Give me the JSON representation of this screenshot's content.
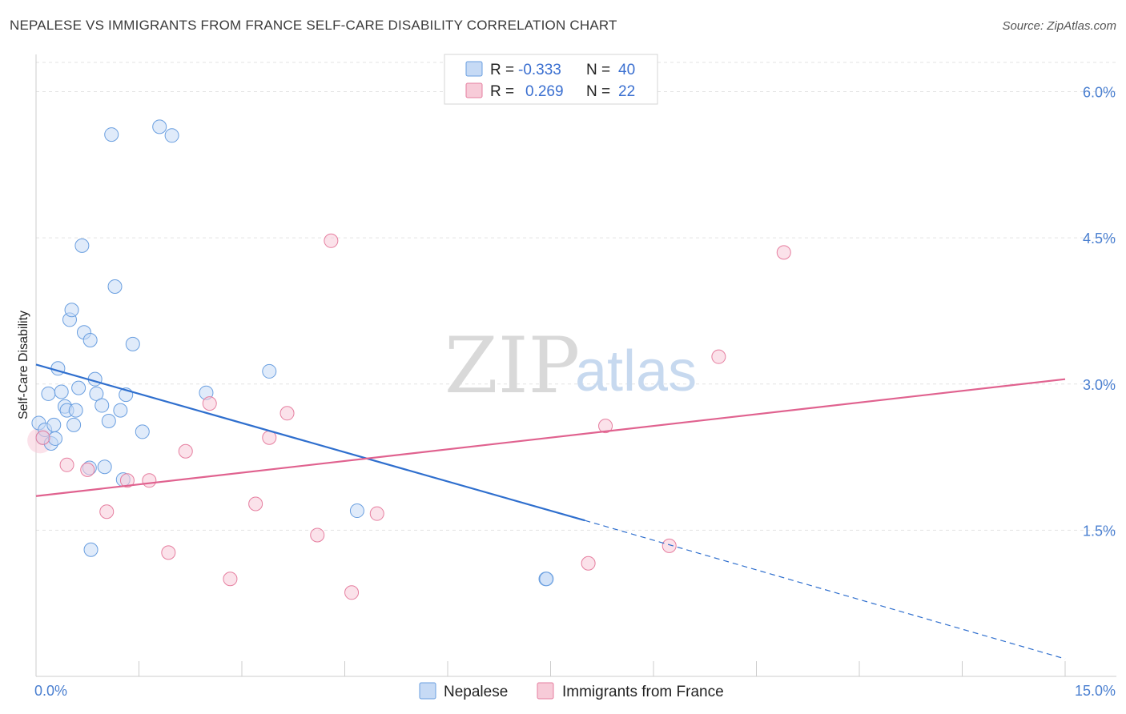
{
  "title": "NEPALESE VS IMMIGRANTS FROM FRANCE SELF-CARE DISABILITY CORRELATION CHART",
  "source": "Source: ZipAtlas.com",
  "watermark": {
    "left": "ZIP",
    "right": "atlas"
  },
  "legend_box": {
    "rows": [
      {
        "r_label": "R =",
        "r_value": "-0.333",
        "n_label": "N =",
        "n_value": "40"
      },
      {
        "r_label": "R =",
        "r_value": "0.269",
        "n_label": "N =",
        "n_value": "22"
      }
    ]
  },
  "bottom_legend": [
    "Nepalese",
    "Immigrants from France"
  ],
  "chart_data": {
    "type": "scatter",
    "ylabel": "Self-Care Disability",
    "xlim": [
      0,
      15
    ],
    "ylim": [
      0,
      6.3
    ],
    "x_ticks": [
      {
        "value": 0,
        "label": "0.0%"
      },
      {
        "value": 15,
        "label": "15.0%"
      }
    ],
    "y_ticks": [
      {
        "value": 1.5,
        "label": "1.5%"
      },
      {
        "value": 3.0,
        "label": "3.0%"
      },
      {
        "value": 4.5,
        "label": "4.5%"
      },
      {
        "value": 6.0,
        "label": "6.0%"
      }
    ],
    "grid": true,
    "series": [
      {
        "name": "Nepalese",
        "color": "#6a9fe0",
        "fill": "#c6daf5",
        "line_color": "#2f6fce",
        "trend": {
          "x0": 0,
          "y0": 3.2,
          "x1": 8.0,
          "y1": 1.6,
          "dash_x1": 15,
          "dash_y1": 0.18
        },
        "points": [
          [
            0.04,
            2.6
          ],
          [
            0.1,
            2.45
          ],
          [
            0.13,
            2.53
          ],
          [
            0.18,
            2.9
          ],
          [
            0.22,
            2.39
          ],
          [
            0.26,
            2.58
          ],
          [
            0.28,
            2.44
          ],
          [
            0.32,
            3.16
          ],
          [
            0.37,
            2.92
          ],
          [
            0.42,
            2.77
          ],
          [
            0.45,
            2.73
          ],
          [
            0.49,
            3.66
          ],
          [
            0.52,
            3.76
          ],
          [
            0.55,
            2.58
          ],
          [
            0.58,
            2.73
          ],
          [
            0.62,
            2.96
          ],
          [
            0.67,
            4.42
          ],
          [
            0.7,
            3.53
          ],
          [
            0.78,
            2.14
          ],
          [
            0.79,
            3.45
          ],
          [
            0.8,
            1.3
          ],
          [
            0.86,
            3.05
          ],
          [
            0.88,
            2.9
          ],
          [
            0.96,
            2.78
          ],
          [
            1.06,
            2.62
          ],
          [
            1.1,
            5.56
          ],
          [
            1.15,
            4.0
          ],
          [
            1.23,
            2.73
          ],
          [
            1.27,
            2.02
          ],
          [
            1.31,
            2.89
          ],
          [
            1.41,
            3.41
          ],
          [
            1.55,
            2.51
          ],
          [
            1.8,
            5.64
          ],
          [
            1.98,
            5.55
          ],
          [
            2.48,
            2.91
          ],
          [
            3.4,
            3.13
          ],
          [
            4.68,
            1.7
          ],
          [
            7.43,
            1.0
          ],
          [
            7.44,
            1.0
          ],
          [
            1.0,
            2.15
          ]
        ]
      },
      {
        "name": "Immigrants from France",
        "color": "#e67fa0",
        "fill": "#f7cbd8",
        "line_color": "#e0628f",
        "trend": {
          "x0": 0,
          "y0": 1.85,
          "x1": 15,
          "y1": 3.05
        },
        "points": [
          [
            0.1,
            2.45
          ],
          [
            0.45,
            2.17
          ],
          [
            0.75,
            2.12
          ],
          [
            1.03,
            1.69
          ],
          [
            1.33,
            2.01
          ],
          [
            1.65,
            2.01
          ],
          [
            1.93,
            1.27
          ],
          [
            2.18,
            2.31
          ],
          [
            2.53,
            2.8
          ],
          [
            2.83,
            1.0
          ],
          [
            3.2,
            1.77
          ],
          [
            3.4,
            2.45
          ],
          [
            3.66,
            2.7
          ],
          [
            4.1,
            1.45
          ],
          [
            4.3,
            4.47
          ],
          [
            4.6,
            0.86
          ],
          [
            4.97,
            1.67
          ],
          [
            8.05,
            1.16
          ],
          [
            8.3,
            2.57
          ],
          [
            9.23,
            1.34
          ],
          [
            9.95,
            3.28
          ],
          [
            10.9,
            4.35
          ]
        ]
      }
    ]
  }
}
